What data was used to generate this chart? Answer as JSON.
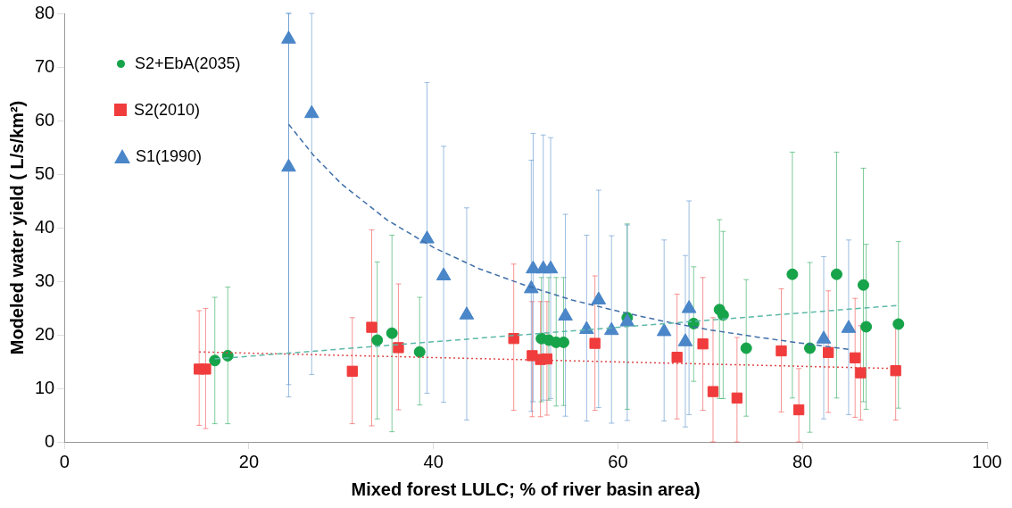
{
  "chart_data": {
    "type": "scatter",
    "xlabel": "Mixed forest LULC; % of river basin area)",
    "ylabel": "Modeled water yield ( L/s/km²)",
    "xlim": [
      0,
      100
    ],
    "xticks": [
      0,
      20,
      40,
      60,
      80,
      100
    ],
    "ylim": [
      0,
      80
    ],
    "yticks": [
      0,
      10,
      20,
      30,
      40,
      50,
      60,
      70,
      80
    ],
    "grid": false,
    "legend": "top left",
    "series": [
      {
        "name": "S2+EbA(2035)",
        "color": "#16a34a",
        "marker": "circle",
        "x": [
          16.3,
          17.7,
          33.9,
          35.5,
          38.5,
          51.7,
          52.5,
          53.3,
          54.1,
          61.0,
          68.2,
          71.0,
          71.4,
          73.9,
          78.9,
          80.8,
          83.7,
          86.6,
          86.9,
          90.4
        ],
        "values": [
          15.2,
          16.1,
          19.0,
          20.3,
          16.8,
          19.3,
          19.0,
          18.6,
          18.6,
          23.2,
          22.1,
          24.7,
          23.7,
          17.5,
          31.3,
          17.5,
          31.3,
          29.3,
          21.5,
          22.0
        ],
        "errors": [
          [
            3.4,
            27.0
          ],
          [
            3.4,
            28.9
          ],
          [
            4.3,
            33.6
          ],
          [
            1.9,
            38.6
          ],
          [
            6.9,
            27.0
          ],
          [
            7.5,
            30.7
          ],
          [
            7.8,
            30.7
          ],
          [
            6.7,
            30.7
          ],
          [
            6.8,
            30.7
          ],
          [
            6.1,
            40.7
          ],
          [
            11.3,
            32.7
          ],
          [
            8.1,
            41.5
          ],
          [
            8.1,
            39.3
          ],
          [
            4.8,
            30.3
          ],
          [
            8.2,
            54.1
          ],
          [
            1.8,
            33.5
          ],
          [
            8.2,
            54.1
          ],
          [
            7.5,
            51.1
          ],
          [
            6.1,
            36.9
          ],
          [
            6.3,
            37.4
          ]
        ]
      },
      {
        "name": "S2(2010)",
        "color": "#f03c3c",
        "marker": "square",
        "x": [
          14.6,
          15.3,
          31.2,
          33.3,
          36.2,
          48.7,
          50.7,
          51.6,
          52.3,
          57.5,
          66.4,
          69.2,
          70.3,
          72.9,
          77.7,
          79.6,
          82.8,
          85.7,
          86.3,
          90.1
        ],
        "values": [
          13.6,
          13.6,
          13.2,
          21.4,
          17.6,
          19.3,
          16.1,
          15.4,
          15.5,
          18.4,
          15.8,
          18.3,
          9.4,
          8.2,
          17.0,
          6.0,
          16.7,
          15.7,
          12.9,
          13.3
        ],
        "errors": [
          [
            3.1,
            24.5
          ],
          [
            2.5,
            24.9
          ],
          [
            3.4,
            23.2
          ],
          [
            3.0,
            39.6
          ],
          [
            6.0,
            29.5
          ],
          [
            5.9,
            33.2
          ],
          [
            4.7,
            26.2
          ],
          [
            4.7,
            26.2
          ],
          [
            5.0,
            26.2
          ],
          [
            5.9,
            31.0
          ],
          [
            4.3,
            27.6
          ],
          [
            5.9,
            30.7
          ],
          [
            0,
            23.2
          ],
          [
            0,
            19.5
          ],
          [
            5.6,
            28.6
          ],
          [
            0,
            13.7
          ],
          [
            5.5,
            28.2
          ],
          [
            4.6,
            26.8
          ],
          [
            4.1,
            21.7
          ],
          [
            4.1,
            22.5
          ]
        ]
      },
      {
        "name": "S1(1990)",
        "color": "#4a86c8",
        "marker": "triangle",
        "x": [
          24.3,
          24.3,
          26.8,
          39.3,
          41.1,
          43.6,
          50.6,
          50.8,
          51.9,
          52.7,
          54.3,
          56.6,
          57.9,
          59.3,
          61.0,
          65.0,
          67.3,
          67.7,
          82.3,
          85.0
        ],
        "values": [
          75.2,
          51.3,
          61.3,
          37.9,
          31.0,
          23.7,
          28.6,
          32.3,
          32.3,
          32.3,
          23.5,
          21.0,
          26.5,
          20.8,
          22.4,
          20.6,
          18.7,
          24.9,
          19.2,
          21.2
        ],
        "errors": [
          [
            8.4,
            80
          ],
          [
            10.7,
            80
          ],
          [
            12.6,
            80
          ],
          [
            9.1,
            67.1
          ],
          [
            7.4,
            55.2
          ],
          [
            4.1,
            43.7
          ],
          [
            5.7,
            52.6
          ],
          [
            7.5,
            57.6
          ],
          [
            7.8,
            57.3
          ],
          [
            8.1,
            56.8
          ],
          [
            4.8,
            42.5
          ],
          [
            3.9,
            38.6
          ],
          [
            6.4,
            47.0
          ],
          [
            3.5,
            38.5
          ],
          [
            4.0,
            40.5
          ],
          [
            3.9,
            37.7
          ],
          [
            2.8,
            34.8
          ],
          [
            5.1,
            45.0
          ],
          [
            4.3,
            34.6
          ],
          [
            5.1,
            37.7
          ]
        ]
      },
      {
        "type": "line",
        "color": "#5cb8a8",
        "line_style": "dashed",
        "x": [
          16.3,
          90.4
        ],
        "values": [
          15.5,
          25.5
        ]
      },
      {
        "type": "line",
        "color": "#e04848",
        "line_style": "dotted",
        "x": [
          14.6,
          90.1
        ],
        "values": [
          16.8,
          13.7
        ]
      },
      {
        "type": "line",
        "color": "#3f6fa8",
        "line_style": "dashed",
        "x": [
          24.3,
          27,
          30,
          35,
          40,
          45,
          50,
          55,
          60,
          65,
          70,
          75,
          80,
          85
        ],
        "values": [
          59.3,
          53.5,
          48.2,
          41.4,
          36.3,
          32.3,
          29.2,
          26.5,
          24.4,
          22.5,
          20.9,
          19.6,
          18.4,
          17.3
        ]
      }
    ]
  }
}
